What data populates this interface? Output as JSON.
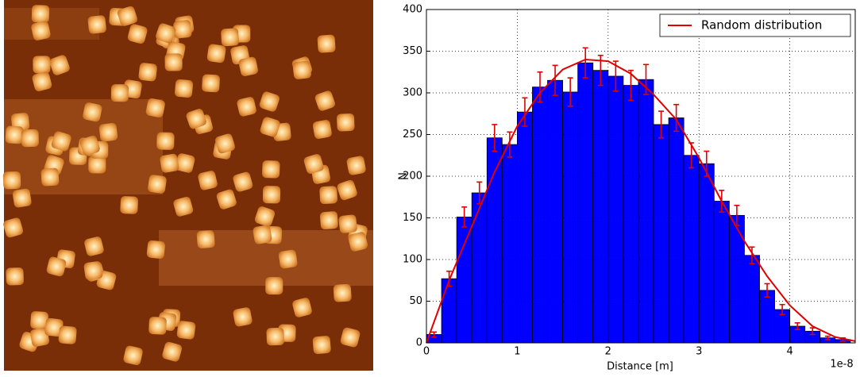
{
  "chart_data": {
    "type": "histogram",
    "bins": [
      0,
      1.667e-09,
      3.333e-09,
      5e-09,
      6.667e-09,
      8.333e-09,
      1e-08,
      1.1667e-08,
      1.3333e-08,
      1.5e-08,
      1.6667e-08,
      1.8333e-08,
      2e-08,
      2.1667e-08,
      2.3333e-08,
      2.5e-08,
      2.6667e-08,
      2.8333e-08,
      3e-08,
      3.1667e-08,
      3.3333e-08,
      3.5e-08,
      3.6667e-08,
      3.8333e-08,
      4e-08,
      4.1667e-08,
      4.3333e-08,
      4.5e-08,
      4.6667e-08
    ],
    "values": [
      10,
      77,
      151,
      180,
      246,
      238,
      277,
      307,
      315,
      301,
      336,
      327,
      320,
      309,
      316,
      262,
      270,
      225,
      215,
      170,
      153,
      105,
      63,
      40,
      20,
      14,
      6,
      4
    ],
    "errors": [
      3,
      9,
      12,
      13,
      16,
      15,
      17,
      18,
      18,
      17,
      18,
      18,
      18,
      18,
      18,
      16,
      16,
      15,
      15,
      13,
      12,
      10,
      8,
      6,
      4,
      4,
      2,
      2
    ],
    "color": "#0000ff",
    "error_color": "#e00000",
    "series": [
      {
        "name": "Random distribution",
        "color": "#e00000",
        "x": [
          0,
          2.5e-09,
          5e-09,
          7.5e-09,
          1e-08,
          1.25e-08,
          1.5e-08,
          1.75e-08,
          2e-08,
          2.25e-08,
          2.5e-08,
          2.75e-08,
          3e-08,
          3.25e-08,
          3.5e-08,
          3.75e-08,
          4e-08,
          4.25e-08,
          4.5e-08,
          4.72e-08
        ],
        "values": [
          0,
          75,
          140,
          205,
          260,
          300,
          328,
          340,
          338,
          323,
          298,
          268,
          222,
          170,
          122,
          80,
          45,
          20,
          7,
          2
        ]
      }
    ],
    "xlabel": "Distance [m]",
    "ylabel": "N",
    "x_offset_label": "1e-8",
    "xlim": [
      0,
      4.72e-08
    ],
    "xticks": [
      0,
      {
        "value": 1e-08,
        "label": "1"
      },
      {
        "value": 2e-08,
        "label": "2"
      },
      {
        "value": 3e-08,
        "label": "3"
      },
      {
        "value": 4e-08,
        "label": "4"
      }
    ],
    "ylim": [
      0,
      400
    ],
    "yticks": [
      0,
      50,
      100,
      150,
      200,
      250,
      300,
      350,
      400
    ],
    "grid": true,
    "legend": "upper right"
  }
}
